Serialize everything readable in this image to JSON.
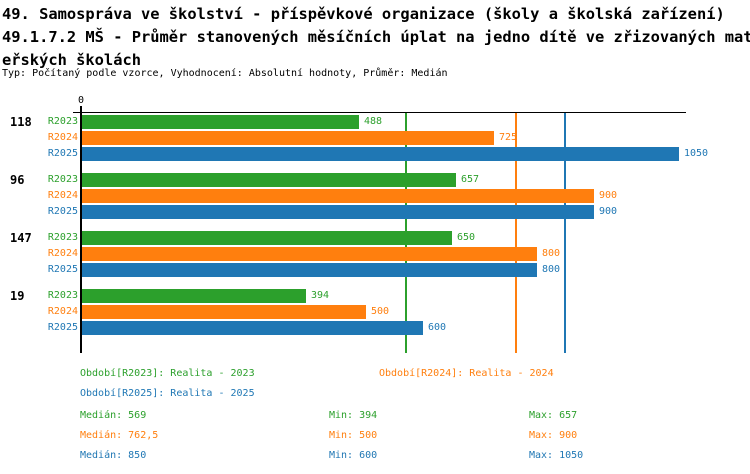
{
  "header": {
    "title_line1": "49. Samospráva ve školství - příspěvkové organizace (školy a školská zařízení)",
    "title_line2": "49.1.7.2 MŠ - Průměr stanovených měsíčních úplat na jedno dítě ve zřizovaných mat",
    "title_line3": "eřských školách",
    "subtitle": "Typ: Počítaný podle vzorce, Vyhodnocení: Absolutní hodnoty, Průměr: Medián"
  },
  "series_colors": {
    "R2023": "#2CA02C",
    "R2024": "#FF7F0E",
    "R2025": "#1F77B4"
  },
  "axis_color": "#000000",
  "chart_data": {
    "type": "bar",
    "orientation": "horizontal",
    "origin_label": "0",
    "xlim": [
      0,
      1062
    ],
    "grid": false,
    "series": [
      "R2023",
      "R2024",
      "R2025"
    ],
    "groups": [
      {
        "label": "118",
        "values": [
          488,
          725,
          1050
        ]
      },
      {
        "label": "96",
        "values": [
          657,
          900,
          900
        ]
      },
      {
        "label": "147",
        "values": [
          650,
          800,
          800
        ]
      },
      {
        "label": "19",
        "values": [
          394,
          500,
          600
        ]
      }
    ],
    "median_lines": [
      {
        "series": "R2023",
        "value": 569
      },
      {
        "series": "R2024",
        "value": 762.5
      },
      {
        "series": "R2025",
        "value": 850
      }
    ]
  },
  "legend": {
    "items": [
      {
        "series": "R2023",
        "label": "Období[R2023]: Realita - 2023"
      },
      {
        "series": "R2024",
        "label": "Období[R2024]: Realita - 2024"
      },
      {
        "series": "R2025",
        "label": "Období[R2025]: Realita - 2025"
      }
    ]
  },
  "stats": {
    "rows": [
      {
        "series": "R2023",
        "cells": [
          "Medián: 569",
          "Min: 394",
          "Max: 657"
        ]
      },
      {
        "series": "R2024",
        "cells": [
          "Medián: 762,5",
          "Min: 500",
          "Max: 900"
        ]
      },
      {
        "series": "R2025",
        "cells": [
          "Medián: 850",
          "Min: 600",
          "Max: 1050"
        ]
      }
    ]
  }
}
